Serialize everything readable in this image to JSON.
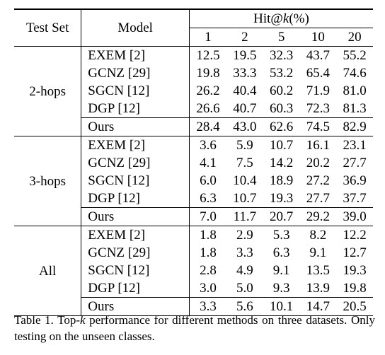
{
  "table": {
    "headers": {
      "test_set": "Test Set",
      "model": "Model",
      "hit_prefix": "Hit@",
      "hit_var": "k",
      "hit_suffix": "(%)",
      "k_values": [
        "1",
        "2",
        "5",
        "10",
        "20"
      ]
    },
    "groups": [
      {
        "name": "2-hops",
        "rows": [
          {
            "model": "EXEM [2]",
            "values": [
              "12.5",
              "19.5",
              "32.3",
              "43.7",
              "55.2"
            ],
            "bold": false
          },
          {
            "model": "GCNZ [29]",
            "values": [
              "19.8",
              "33.3",
              "53.2",
              "65.4",
              "74.6"
            ],
            "bold": false
          },
          {
            "model": "SGCN [12]",
            "values": [
              "26.2",
              "40.4",
              "60.2",
              "71.9",
              "81.0"
            ],
            "bold": false
          },
          {
            "model": "DGP [12]",
            "values": [
              "26.6",
              "40.7",
              "60.3",
              "72.3",
              "81.3"
            ],
            "bold": false
          },
          {
            "model": "Ours",
            "values": [
              "28.4",
              "43.0",
              "62.6",
              "74.5",
              "82.9"
            ],
            "bold": true
          }
        ]
      },
      {
        "name": "3-hops",
        "rows": [
          {
            "model": "EXEM [2]",
            "values": [
              "3.6",
              "5.9",
              "10.7",
              "16.1",
              "23.1"
            ],
            "bold": false
          },
          {
            "model": "GCNZ [29]",
            "values": [
              "4.1",
              "7.5",
              "14.2",
              "20.2",
              "27.7"
            ],
            "bold": false
          },
          {
            "model": "SGCN [12]",
            "values": [
              "6.0",
              "10.4",
              "18.9",
              "27.2",
              "36.9"
            ],
            "bold": false
          },
          {
            "model": "DGP [12]",
            "values": [
              "6.3",
              "10.7",
              "19.3",
              "27.7",
              "37.7"
            ],
            "bold": false
          },
          {
            "model": "Ours",
            "values": [
              "7.0",
              "11.7",
              "20.7",
              "29.2",
              "39.0"
            ],
            "bold": true
          }
        ]
      },
      {
        "name": "All",
        "rows": [
          {
            "model": "EXEM [2]",
            "values": [
              "1.8",
              "2.9",
              "5.3",
              "8.2",
              "12.2"
            ],
            "bold": false
          },
          {
            "model": "GCNZ [29]",
            "values": [
              "1.8",
              "3.3",
              "6.3",
              "9.1",
              "12.7"
            ],
            "bold": false
          },
          {
            "model": "SGCN [12]",
            "values": [
              "2.8",
              "4.9",
              "9.1",
              "13.5",
              "19.3"
            ],
            "bold": false
          },
          {
            "model": "DGP [12]",
            "values": [
              "3.0",
              "5.0",
              "9.3",
              "13.9",
              "19.8"
            ],
            "bold": false
          },
          {
            "model": "Ours",
            "values": [
              "3.3",
              "5.6",
              "10.1",
              "14.7",
              "20.5"
            ],
            "bold": true
          }
        ]
      }
    ]
  },
  "caption": {
    "label": "Table 1.",
    "text_before": " Top-",
    "var": "k",
    "text_after": " performance for different methods on three datasets. Only testing on the unseen classes."
  }
}
